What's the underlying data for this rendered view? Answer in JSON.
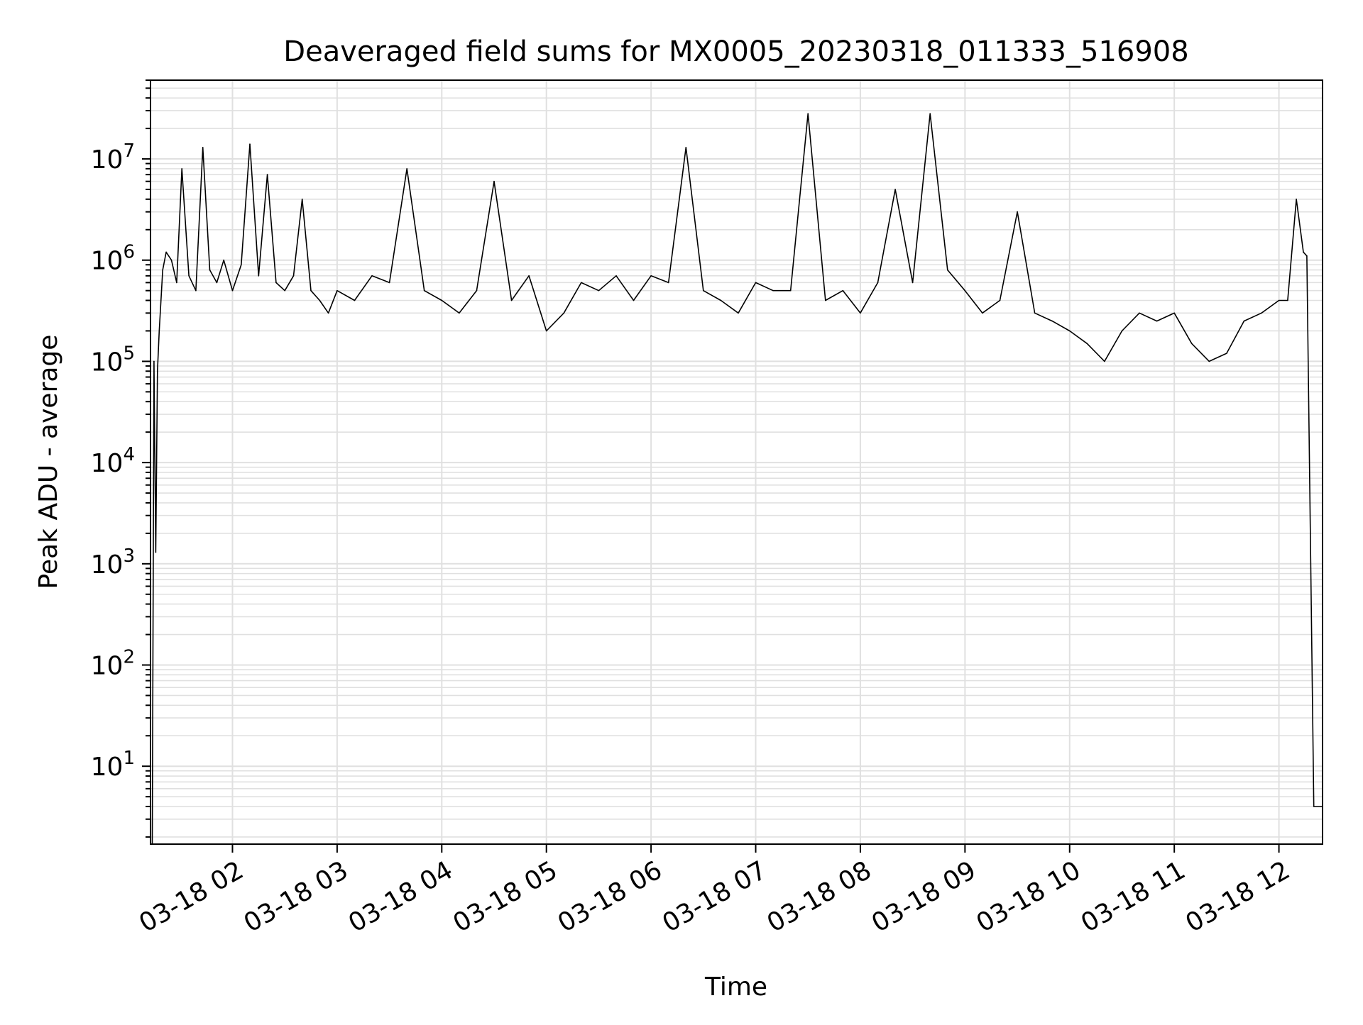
{
  "chart_data": {
    "type": "line",
    "title": "Deaveraged field sums for MX0005_20230318_011333_516908",
    "xlabel": "Time",
    "ylabel": "Peak ADU - average",
    "yscale": "log",
    "ylim": [
      1.7,
      60000000
    ],
    "xlim": [
      "03-18 01:13",
      "03-18 12:25"
    ],
    "grid": true,
    "line_color": "#000000",
    "x_ticks": [
      "03-18 02",
      "03-18 03",
      "03-18 04",
      "03-18 05",
      "03-18 06",
      "03-18 07",
      "03-18 08",
      "03-18 09",
      "03-18 10",
      "03-18 11",
      "03-18 12"
    ],
    "y_ticks": [
      {
        "value": 10,
        "base": "10",
        "exp": "1"
      },
      {
        "value": 100,
        "base": "10",
        "exp": "2"
      },
      {
        "value": 1000,
        "base": "10",
        "exp": "3"
      },
      {
        "value": 10000,
        "base": "10",
        "exp": "4"
      },
      {
        "value": 100000,
        "base": "10",
        "exp": "5"
      },
      {
        "value": 1000000,
        "base": "10",
        "exp": "6"
      },
      {
        "value": 10000000,
        "base": "10",
        "exp": "7"
      }
    ],
    "series": [
      {
        "x": [
          "03-18 01:14",
          "03-18 01:15",
          "03-18 01:16",
          "03-18 01:17",
          "03-18 01:18",
          "03-18 01:20",
          "03-18 01:22",
          "03-18 01:25",
          "03-18 01:28",
          "03-18 01:31",
          "03-18 01:35",
          "03-18 01:39",
          "03-18 01:43",
          "03-18 01:47",
          "03-18 01:51",
          "03-18 01:55",
          "03-18 02:00",
          "03-18 02:05",
          "03-18 02:10",
          "03-18 02:15",
          "03-18 02:20",
          "03-18 02:25",
          "03-18 02:30",
          "03-18 02:35",
          "03-18 02:40",
          "03-18 02:45",
          "03-18 02:50",
          "03-18 02:55",
          "03-18 03:00",
          "03-18 03:10",
          "03-18 03:20",
          "03-18 03:30",
          "03-18 03:40",
          "03-18 03:50",
          "03-18 04:00",
          "03-18 04:10",
          "03-18 04:20",
          "03-18 04:30",
          "03-18 04:40",
          "03-18 04:50",
          "03-18 05:00",
          "03-18 05:10",
          "03-18 05:20",
          "03-18 05:30",
          "03-18 05:40",
          "03-18 05:50",
          "03-18 06:00",
          "03-18 06:10",
          "03-18 06:20",
          "03-18 06:30",
          "03-18 06:40",
          "03-18 06:50",
          "03-18 07:00",
          "03-18 07:10",
          "03-18 07:20",
          "03-18 07:30",
          "03-18 07:40",
          "03-18 07:50",
          "03-18 08:00",
          "03-18 08:10",
          "03-18 08:20",
          "03-18 08:30",
          "03-18 08:40",
          "03-18 08:50",
          "03-18 09:00",
          "03-18 09:10",
          "03-18 09:20",
          "03-18 09:30",
          "03-18 09:40",
          "03-18 09:50",
          "03-18 10:00",
          "03-18 10:10",
          "03-18 10:20",
          "03-18 10:30",
          "03-18 10:40",
          "03-18 10:50",
          "03-18 11:00",
          "03-18 11:10",
          "03-18 11:20",
          "03-18 11:30",
          "03-18 11:40",
          "03-18 11:50",
          "03-18 12:00",
          "03-18 12:05",
          "03-18 12:10",
          "03-18 12:14",
          "03-18 12:16",
          "03-18 12:20",
          "03-18 12:25"
        ],
        "values": [
          1.7,
          100000,
          1300,
          80000,
          200000,
          800000,
          1200000,
          1000000,
          600000,
          8000000,
          700000,
          500000,
          13000000,
          800000,
          600000,
          1000000,
          500000,
          900000,
          14000000,
          700000,
          7000000,
          600000,
          500000,
          700000,
          4000000,
          500000,
          400000,
          300000,
          500000,
          400000,
          700000,
          600000,
          8000000,
          500000,
          400000,
          300000,
          500000,
          6000000,
          400000,
          700000,
          200000,
          300000,
          600000,
          500000,
          700000,
          400000,
          700000,
          600000,
          13000000,
          500000,
          400000,
          300000,
          600000,
          500000,
          500000,
          28000000,
          400000,
          500000,
          300000,
          600000,
          5000000,
          600000,
          28000000,
          800000,
          500000,
          300000,
          400000,
          3000000,
          300000,
          250000,
          200000,
          150000,
          100000,
          200000,
          300000,
          250000,
          300000,
          150000,
          100000,
          120000,
          250000,
          300000,
          400000,
          400000,
          4000000,
          1200000,
          1100000,
          4,
          4
        ]
      }
    ]
  }
}
